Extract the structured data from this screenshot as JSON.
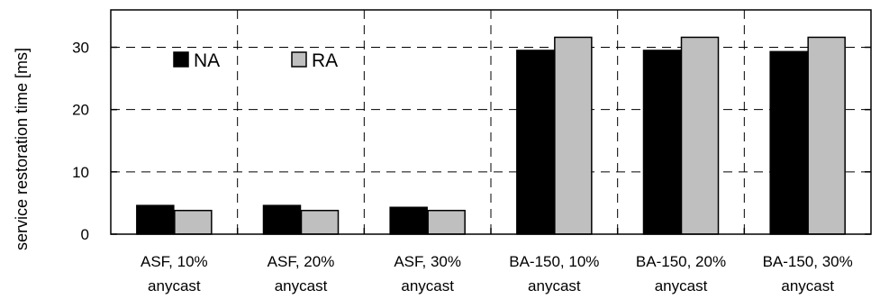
{
  "chart_data": {
    "type": "bar",
    "ylabel": "service restoration time [ms]",
    "ylim": [
      0,
      36
    ],
    "yticks": [
      0,
      10,
      20,
      30
    ],
    "grid": true,
    "legend_position": "top-left",
    "categories": [
      [
        "ASF, 10%",
        "anycast"
      ],
      [
        "ASF, 20%",
        "anycast"
      ],
      [
        "ASF, 30%",
        "anycast"
      ],
      [
        "BA-150, 10%",
        "anycast"
      ],
      [
        "BA-150, 20%",
        "anycast"
      ],
      [
        "BA-150, 30%",
        "anycast"
      ]
    ],
    "series": [
      {
        "name": "NA",
        "color": "#000000",
        "values": [
          4.6,
          4.6,
          4.3,
          29.5,
          29.5,
          29.3
        ]
      },
      {
        "name": "RA",
        "color": "#bfbfbf",
        "values": [
          3.8,
          3.8,
          3.8,
          31.6,
          31.6,
          31.6
        ]
      }
    ]
  }
}
